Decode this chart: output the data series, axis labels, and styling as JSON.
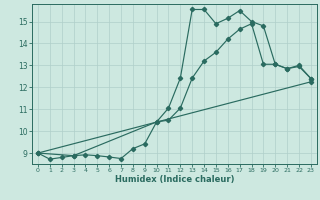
{
  "title": "",
  "xlabel": "Humidex (Indice chaleur)",
  "ylabel": "",
  "bg_color": "#cde8e0",
  "grid_color": "#b0cfca",
  "line_color": "#2a6b60",
  "marker": "D",
  "markersize": 2.2,
  "linewidth": 0.85,
  "xlim": [
    -0.5,
    23.5
  ],
  "ylim": [
    8.5,
    15.8
  ],
  "yticks": [
    9,
    10,
    11,
    12,
    13,
    14,
    15
  ],
  "xticks": [
    0,
    1,
    2,
    3,
    4,
    5,
    6,
    7,
    8,
    9,
    10,
    11,
    12,
    13,
    14,
    15,
    16,
    17,
    18,
    19,
    20,
    21,
    22,
    23
  ],
  "line1_x": [
    0,
    1,
    2,
    3,
    4,
    5,
    6,
    7,
    8,
    9,
    10,
    11,
    12,
    13,
    14,
    15,
    16,
    17,
    18,
    19,
    20,
    21,
    22,
    23
  ],
  "line1_y": [
    9.0,
    8.72,
    8.8,
    8.88,
    8.92,
    8.88,
    8.82,
    8.75,
    9.2,
    9.42,
    10.42,
    11.05,
    12.42,
    15.55,
    15.55,
    14.9,
    15.15,
    15.5,
    15.0,
    14.8,
    13.05,
    12.85,
    13.0,
    12.4
  ],
  "line2_x": [
    0,
    3,
    10,
    11,
    12,
    13,
    14,
    15,
    16,
    17,
    18,
    19,
    20,
    21,
    22,
    23
  ],
  "line2_y": [
    9.0,
    8.88,
    10.42,
    10.5,
    11.05,
    12.42,
    13.2,
    13.6,
    14.2,
    14.65,
    14.9,
    13.05,
    13.05,
    12.85,
    12.95,
    12.4
  ],
  "line3_x": [
    0,
    23
  ],
  "line3_y": [
    9.0,
    12.25
  ]
}
